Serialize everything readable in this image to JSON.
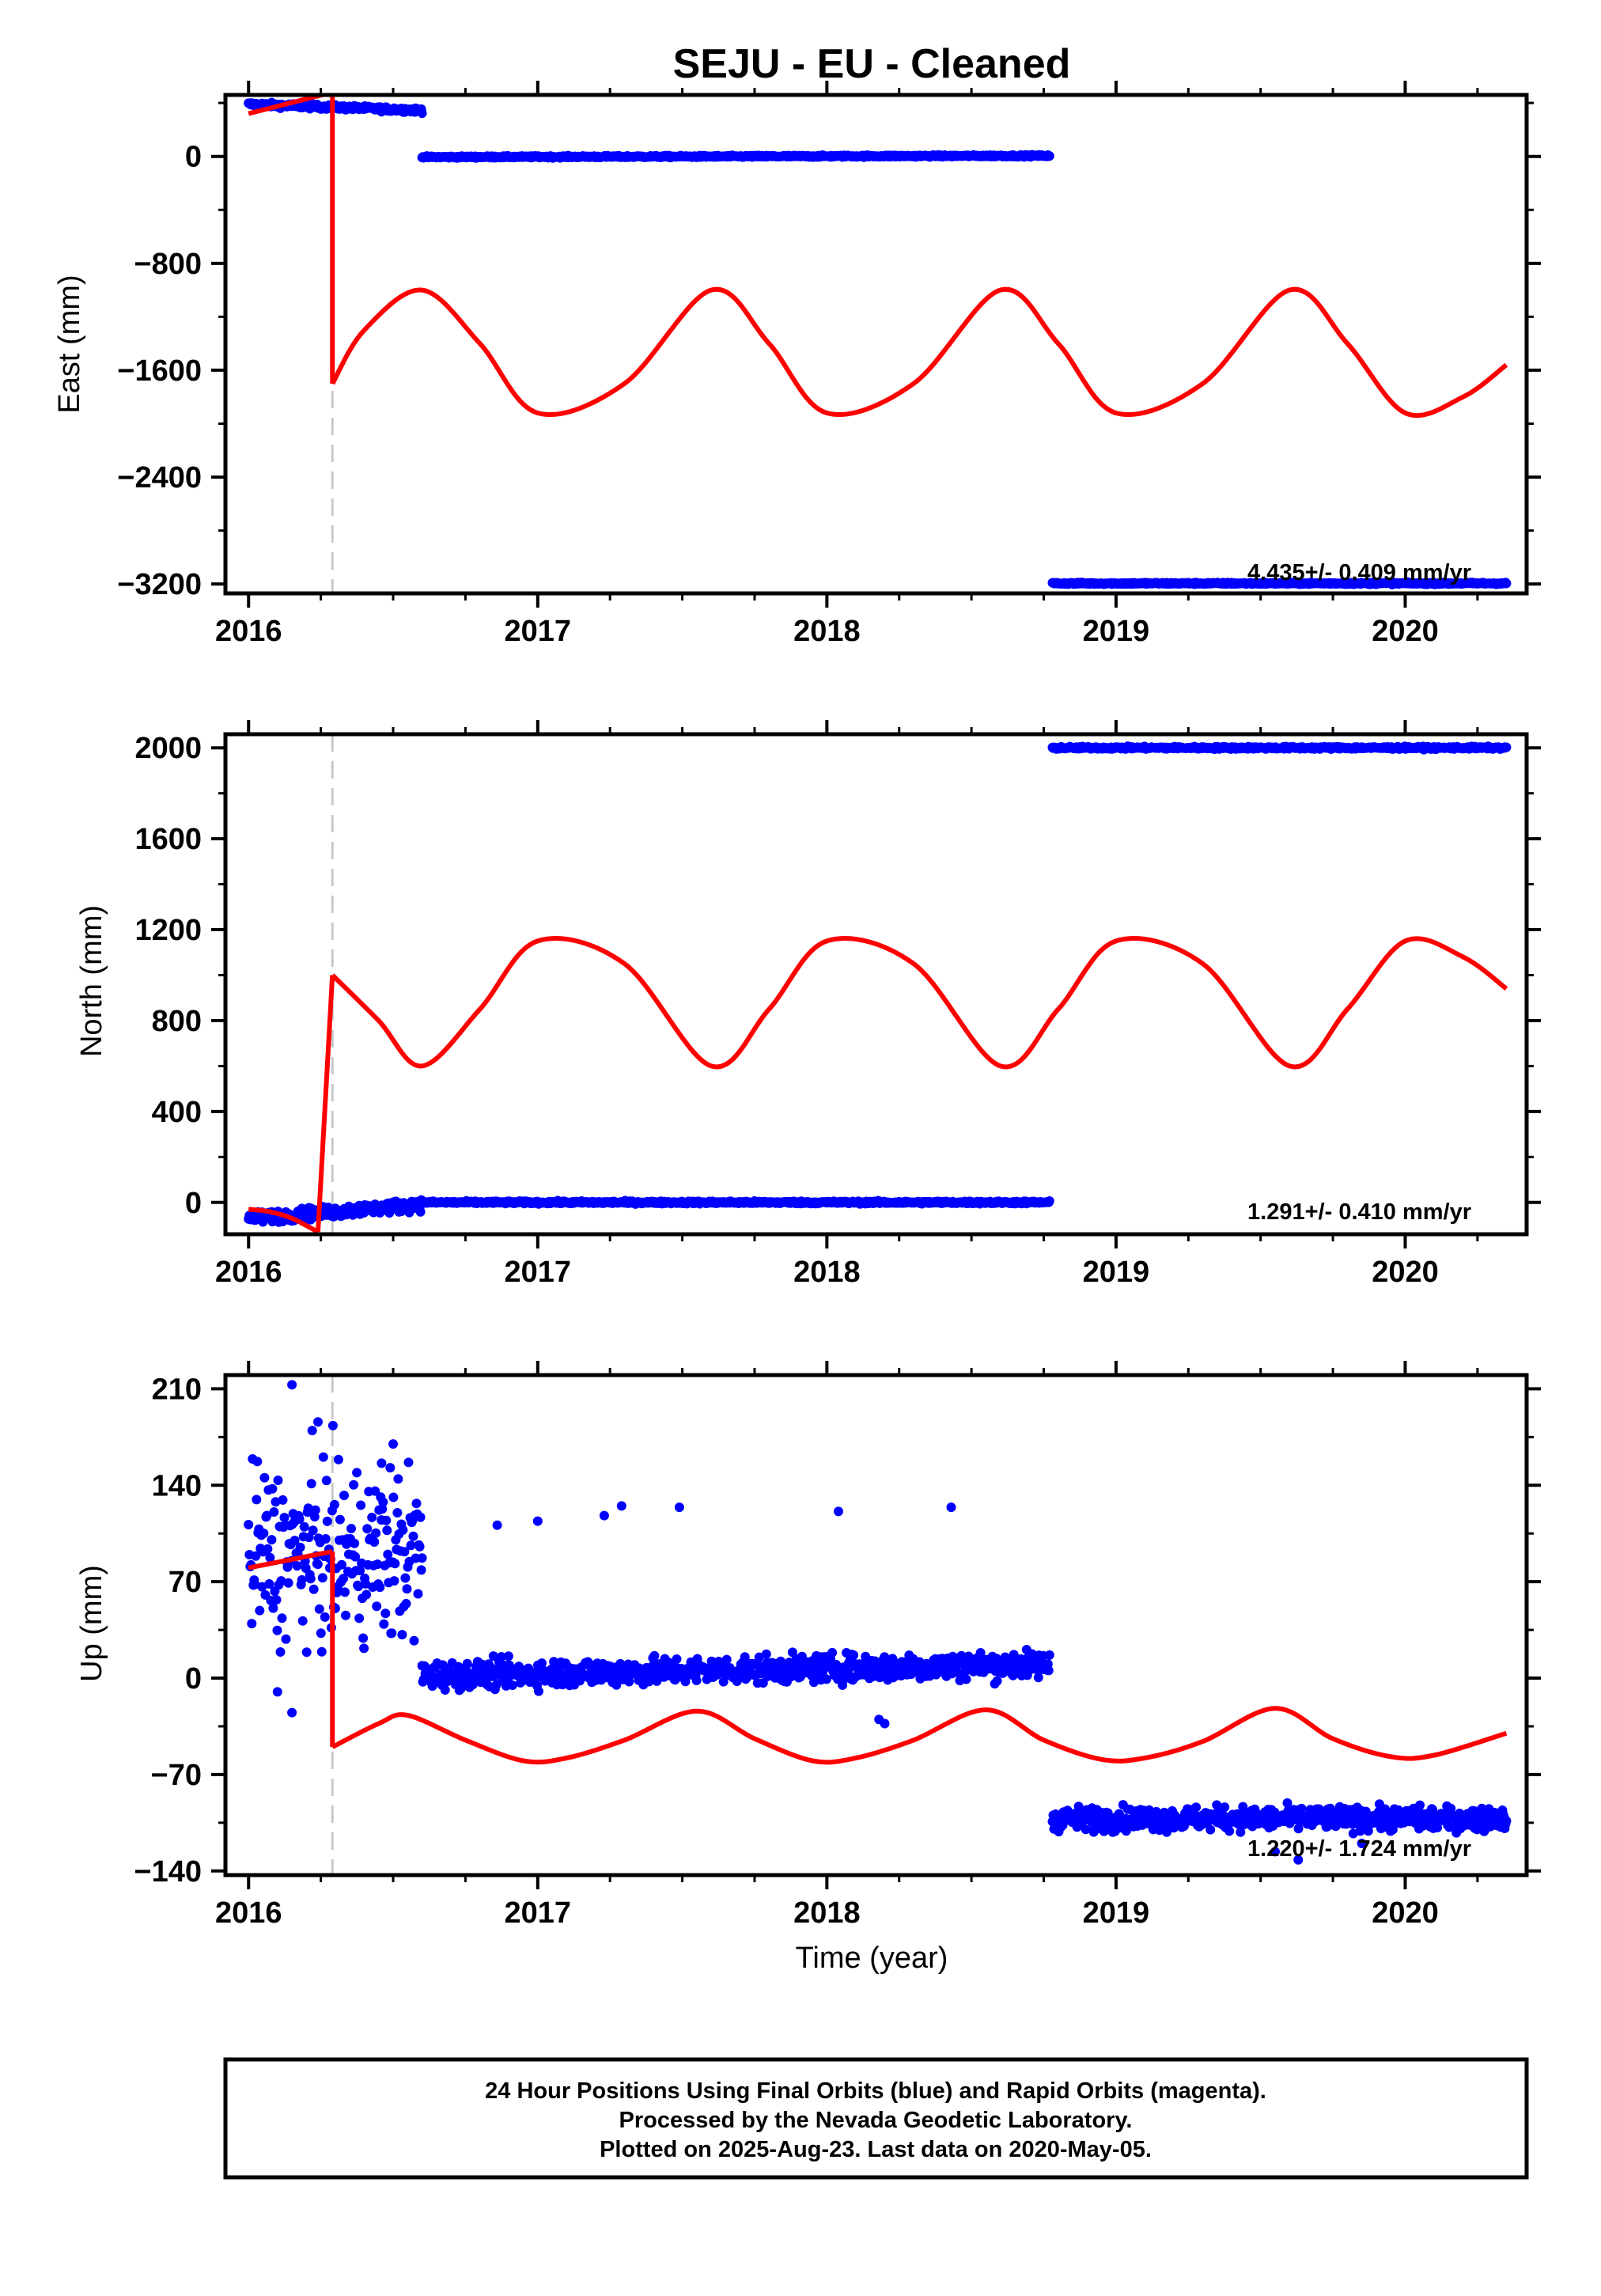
{
  "title": "SEJU  - EU - Cleaned",
  "xlabel": "Time (year)",
  "x_ticks": [
    2016,
    2017,
    2018,
    2019,
    2020
  ],
  "colors": {
    "data": "#0000ff",
    "model": "#ff0000",
    "event": "#c8c8c8"
  },
  "footer": {
    "line1": "24 Hour Positions Using Final Orbits (blue) and Rapid Orbits (magenta).",
    "line2": "Processed by the Nevada Geodetic Laboratory.",
    "line3": "Plotted on 2025-Aug-23. Last data on 2020-May-05."
  },
  "chart_data": [
    {
      "type": "scatter",
      "ylabel": "East (mm)",
      "rate_label": "4.435+/- 0.409 mm/yr",
      "xlim": [
        2015.92,
        2020.42
      ],
      "ylim": [
        -3270,
        460
      ],
      "yticks": [
        0,
        -800,
        -1600,
        -2400,
        -3200
      ],
      "yticks_minor": [
        400,
        -400,
        -1200,
        -2000,
        -2800
      ],
      "event_lines": [
        2016.29
      ],
      "data_segments": [
        {
          "x_start": 2016.0,
          "x_end": 2016.6,
          "y_start": 390,
          "y_end": 345,
          "scatter": 12
        },
        {
          "x_start": 2016.6,
          "x_end": 2018.77,
          "y_start": -5,
          "y_end": 5,
          "scatter": 5
        },
        {
          "x_start": 2018.78,
          "x_end": 2020.35,
          "y_start": -3195,
          "y_end": -3195,
          "scatter": 5
        }
      ],
      "model": {
        "pre_event": {
          "x": [
            2016.0,
            2016.29
          ],
          "y": [
            320,
            480
          ]
        },
        "post_event": {
          "x": [
            2016.29,
            2016.4,
            2016.6,
            2016.8,
            2017.0,
            2017.3,
            2017.6,
            2017.8,
            2018.0,
            2018.3,
            2018.6,
            2018.8,
            2019.0,
            2019.3,
            2019.6,
            2019.8,
            2020.0,
            2020.2,
            2020.35
          ],
          "y": [
            -1700,
            -1300,
            -1000,
            -1400,
            -1920,
            -1700,
            -1000,
            -1400,
            -1920,
            -1700,
            -1000,
            -1400,
            -1920,
            -1700,
            -1000,
            -1400,
            -1920,
            -1800,
            -1560
          ]
        }
      }
    },
    {
      "type": "scatter",
      "ylabel": "North (mm)",
      "rate_label": "1.291+/- 0.410 mm/yr",
      "xlim": [
        2015.92,
        2020.42
      ],
      "ylim": [
        -140,
        2060
      ],
      "yticks": [
        0,
        400,
        800,
        1200,
        1600,
        2000
      ],
      "yticks_minor": [
        200,
        600,
        1000,
        1400,
        1800
      ],
      "event_lines": [
        2016.29
      ],
      "data_segments": [
        {
          "x_start": 2016.0,
          "x_end": 2016.6,
          "y_start": -70,
          "y_end": -10,
          "scatter": 18
        },
        {
          "x_start": 2016.6,
          "x_end": 2018.77,
          "y_start": 0,
          "y_end": 0,
          "scatter": 4
        },
        {
          "x_start": 2018.78,
          "x_end": 2020.35,
          "y_start": 2000,
          "y_end": 2000,
          "scatter": 4
        }
      ],
      "model": {
        "pre_event": {
          "x": [
            2016.0,
            2016.07,
            2016.15,
            2016.24
          ],
          "y": [
            -30,
            -40,
            -70,
            -130
          ]
        },
        "post_event": {
          "x": [
            2016.29,
            2016.45,
            2016.6,
            2016.8,
            2017.0,
            2017.3,
            2017.6,
            2017.8,
            2018.0,
            2018.3,
            2018.6,
            2018.8,
            2019.0,
            2019.3,
            2019.6,
            2019.8,
            2020.0,
            2020.2,
            2020.35
          ],
          "y": [
            1000,
            800,
            600,
            850,
            1150,
            1050,
            600,
            850,
            1150,
            1050,
            600,
            850,
            1150,
            1050,
            600,
            850,
            1150,
            1080,
            940
          ]
        }
      }
    },
    {
      "type": "scatter",
      "ylabel": "Up (mm)",
      "rate_label": "1.220+/- 1.724 mm/yr",
      "xlim": [
        2015.92,
        2020.42
      ],
      "ylim": [
        -143,
        220
      ],
      "yticks": [
        -140,
        -70,
        0,
        70,
        140,
        210
      ],
      "yticks_minor": [
        -105,
        -35,
        35,
        105,
        175
      ],
      "event_lines": [
        2016.29
      ],
      "data_segments": [
        {
          "x_start": 2016.0,
          "x_end": 2016.6,
          "y_start": 90,
          "y_end": 90,
          "scatter": 45
        },
        {
          "x_start": 2016.6,
          "x_end": 2018.77,
          "y_start": 2,
          "y_end": 10,
          "scatter": 7
        },
        {
          "x_start": 2018.78,
          "x_end": 2020.35,
          "y_start": -102,
          "y_end": -102,
          "scatter": 6
        }
      ],
      "outliers": [
        {
          "x": 2016.15,
          "y": 213
        },
        {
          "x": 2016.24,
          "y": 186
        },
        {
          "x": 2016.46,
          "y": 156
        },
        {
          "x": 2016.5,
          "y": 170
        },
        {
          "x": 2016.86,
          "y": 111
        },
        {
          "x": 2017.0,
          "y": 114
        },
        {
          "x": 2017.23,
          "y": 118
        },
        {
          "x": 2017.29,
          "y": 125
        },
        {
          "x": 2017.49,
          "y": 124
        },
        {
          "x": 2018.04,
          "y": 121
        },
        {
          "x": 2018.43,
          "y": 124
        },
        {
          "x": 2018.18,
          "y": -30
        },
        {
          "x": 2018.2,
          "y": -33
        },
        {
          "x": 2019.63,
          "y": -132
        },
        {
          "x": 2019.85,
          "y": -120
        },
        {
          "x": 2019.55,
          "y": -126
        },
        {
          "x": 2016.1,
          "y": -10
        },
        {
          "x": 2016.15,
          "y": -25
        }
      ],
      "model": {
        "pre_event": {
          "x": [
            2016.0,
            2016.29
          ],
          "y": [
            80,
            92
          ]
        },
        "post_event": {
          "x": [
            2016.29,
            2016.45,
            2016.55,
            2016.75,
            2016.95,
            2017.1,
            2017.3,
            2017.55,
            2017.75,
            2017.95,
            2018.1,
            2018.3,
            2018.55,
            2018.75,
            2018.95,
            2019.1,
            2019.3,
            2019.55,
            2019.75,
            2019.95,
            2020.1,
            2020.35
          ],
          "y": [
            -50,
            -33,
            -27,
            -45,
            -60,
            -58,
            -45,
            -24,
            -44,
            -60,
            -58,
            -45,
            -23,
            -45,
            -59,
            -58,
            -46,
            -22,
            -44,
            -57,
            -56,
            -40
          ]
        }
      }
    }
  ]
}
